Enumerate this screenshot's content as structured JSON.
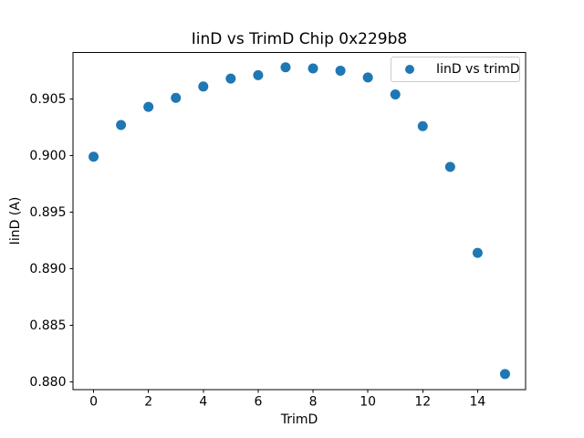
{
  "chart_data": {
    "type": "scatter",
    "title": "IinD vs TrimD Chip 0x229b8",
    "xlabel": "TrimD",
    "ylabel": "IinD (A)",
    "legend": {
      "label": "IinD vs trimD",
      "position": "upper right"
    },
    "x": [
      0,
      1,
      2,
      3,
      4,
      5,
      6,
      7,
      8,
      9,
      10,
      11,
      12,
      13,
      14,
      15
    ],
    "series": [
      {
        "name": "IinD vs trimD",
        "values": [
          0.8999,
          0.9027,
          0.9043,
          0.9051,
          0.9061,
          0.9068,
          0.9071,
          0.9078,
          0.9077,
          0.9075,
          0.9069,
          0.9054,
          0.9026,
          0.899,
          0.8914,
          0.8807
        ]
      }
    ],
    "xlim": [
      -0.75,
      15.75
    ],
    "ylim": [
      0.8793,
      0.9091
    ],
    "xticks": [
      0,
      2,
      4,
      6,
      8,
      10,
      12,
      14
    ],
    "xtick_labels": [
      "0",
      "2",
      "4",
      "6",
      "8",
      "10",
      "12",
      "14"
    ],
    "yticks": [
      0.88,
      0.885,
      0.89,
      0.895,
      0.9,
      0.905
    ],
    "ytick_labels": [
      "0.880",
      "0.885",
      "0.890",
      "0.895",
      "0.900",
      "0.905"
    ],
    "grid": false,
    "marker_color": "#1f77b4",
    "axis_color": "#000000",
    "legend_border_color": "#cccccc",
    "background_color": "#ffffff"
  }
}
